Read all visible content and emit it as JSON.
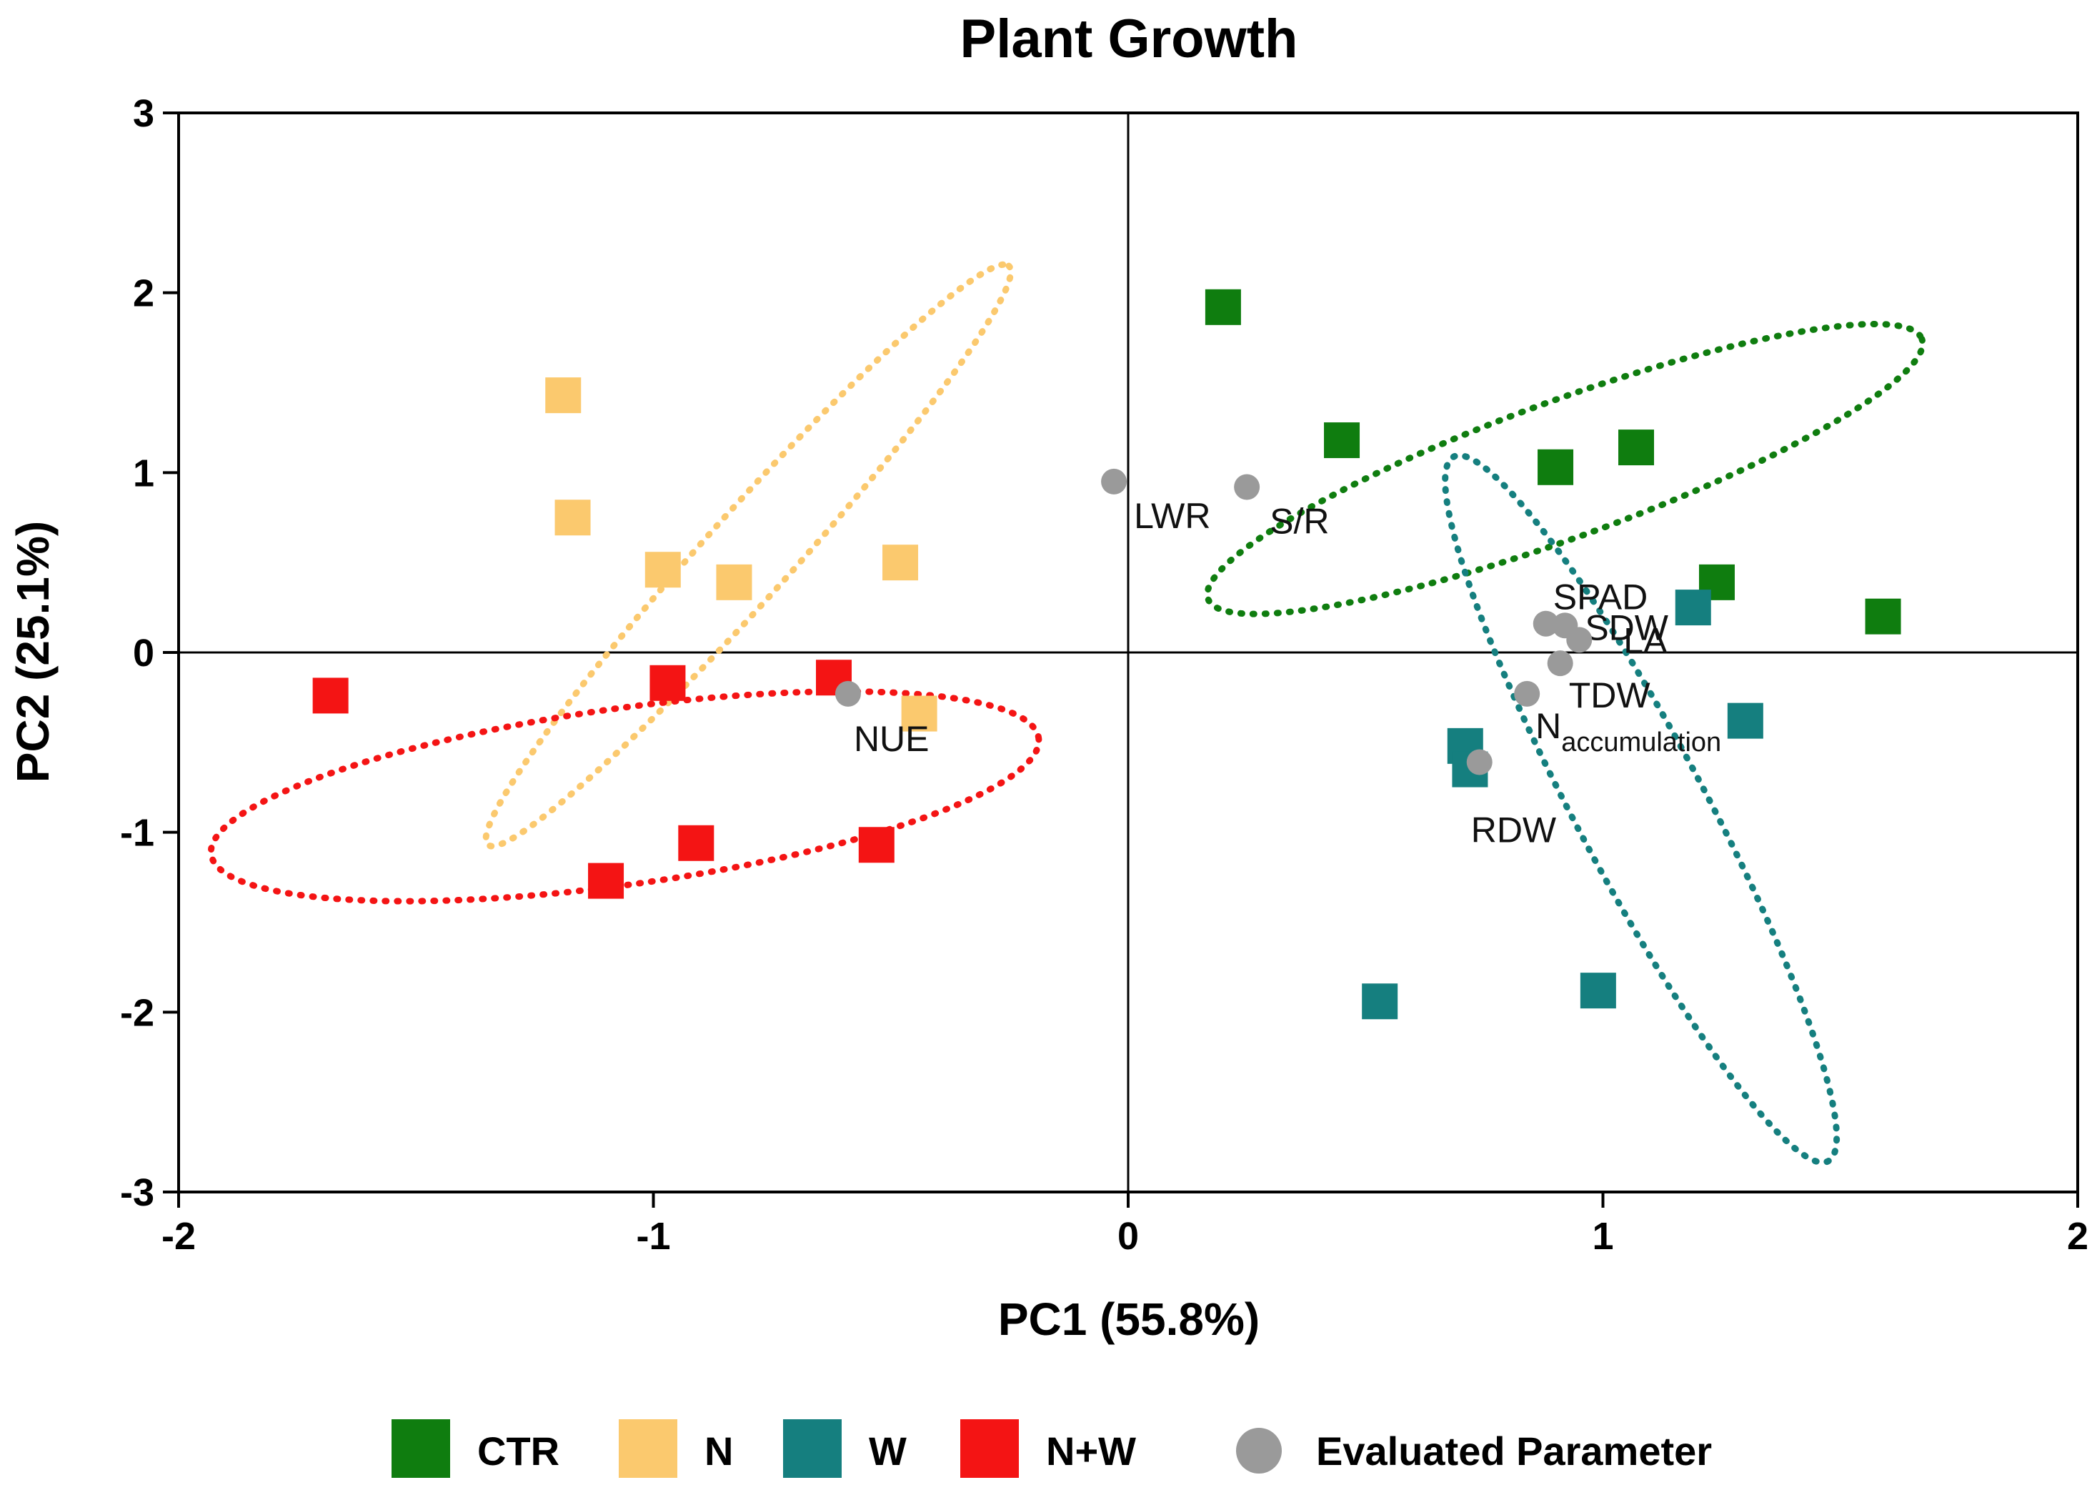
{
  "chart_data": {
    "type": "scatter",
    "title": "Plant Growth",
    "xlabel": "PC1 (55.8%)",
    "ylabel": "PC2 (25.1%)",
    "xlim": [
      -2,
      2
    ],
    "ylim": [
      -3,
      3
    ],
    "xticks": [
      "-2",
      "-1",
      "0",
      "1",
      "2"
    ],
    "yticks": [
      "3",
      "2",
      "1",
      "0",
      "-1",
      "-2",
      "-3"
    ],
    "grid": false,
    "legend_position": "bottom",
    "series": [
      {
        "name": "CTR",
        "color": "#0f7d0f",
        "marker": "square",
        "points": [
          [
            0.2,
            1.92
          ],
          [
            0.45,
            1.18
          ],
          [
            1.07,
            1.14
          ],
          [
            1.24,
            0.39
          ],
          [
            1.59,
            0.2
          ],
          [
            0.9,
            1.03
          ]
        ],
        "ellipse": {
          "cx": 0.92,
          "cy": 1.02,
          "rx": 0.8,
          "ry": 0.38,
          "rotate_deg": -20,
          "color": "#0f7d0f"
        }
      },
      {
        "name": "N",
        "color": "#fbc96e",
        "marker": "square",
        "points": [
          [
            -1.19,
            1.43
          ],
          [
            -1.17,
            0.75
          ],
          [
            -0.98,
            0.46
          ],
          [
            -0.83,
            0.39
          ],
          [
            -0.48,
            0.5
          ],
          [
            -0.44,
            -0.34
          ]
        ],
        "ellipse": {
          "cx": -0.8,
          "cy": 0.54,
          "rx": 0.82,
          "ry": 0.24,
          "rotate_deg": -48,
          "color": "#fbc96e"
        }
      },
      {
        "name": "W",
        "color": "#157f7f",
        "marker": "square",
        "points": [
          [
            1.19,
            0.25
          ],
          [
            1.3,
            -0.38
          ],
          [
            0.71,
            -0.52
          ],
          [
            0.72,
            -0.65
          ],
          [
            0.53,
            -1.94
          ],
          [
            0.99,
            -1.88
          ]
        ],
        "ellipse": {
          "cx": 1.08,
          "cy": -0.87,
          "rx": 0.84,
          "ry": 0.36,
          "rotate_deg": 62,
          "color": "#157f7f"
        }
      },
      {
        "name": "N+W",
        "color": "#f41414",
        "marker": "square",
        "points": [
          [
            -1.68,
            -0.24
          ],
          [
            -0.97,
            -0.17
          ],
          [
            -0.62,
            -0.14
          ],
          [
            -0.91,
            -1.06
          ],
          [
            -1.1,
            -1.27
          ],
          [
            -0.53,
            -1.07
          ]
        ],
        "ellipse": {
          "cx": -1.06,
          "cy": -0.8,
          "rx": 0.88,
          "ry": 0.49,
          "rotate_deg": -8,
          "color": "#f41414"
        }
      },
      {
        "name": "Evaluated Parameter",
        "color": "#9a9a9a",
        "marker": "circle",
        "points": [
          {
            "label": "LWR",
            "x": -0.03,
            "y": 0.95
          },
          {
            "label": "S/R",
            "x": 0.25,
            "y": 0.92
          },
          {
            "label": "SPAD",
            "x": 0.88,
            "y": 0.16
          },
          {
            "label": "SDW",
            "x": 0.92,
            "y": 0.15
          },
          {
            "label": "LA",
            "x": 0.95,
            "y": 0.07
          },
          {
            "label": "TDW",
            "x": 0.91,
            "y": -0.06
          },
          {
            "label": "N",
            "sub": "accumulation",
            "x": 0.84,
            "y": -0.23
          },
          {
            "label": "RDW",
            "x": 0.74,
            "y": -0.61
          },
          {
            "label": "NUE",
            "x": -0.59,
            "y": -0.23
          }
        ]
      }
    ],
    "legend": [
      {
        "label": "CTR",
        "color": "#0f7d0f",
        "marker": "square"
      },
      {
        "label": "N",
        "color": "#fbc96e",
        "marker": "square"
      },
      {
        "label": "W",
        "color": "#157f7f",
        "marker": "square"
      },
      {
        "label": "N+W",
        "color": "#f41414",
        "marker": "square"
      },
      {
        "label": "Evaluated Parameter",
        "color": "#9a9a9a",
        "marker": "circle"
      }
    ]
  }
}
